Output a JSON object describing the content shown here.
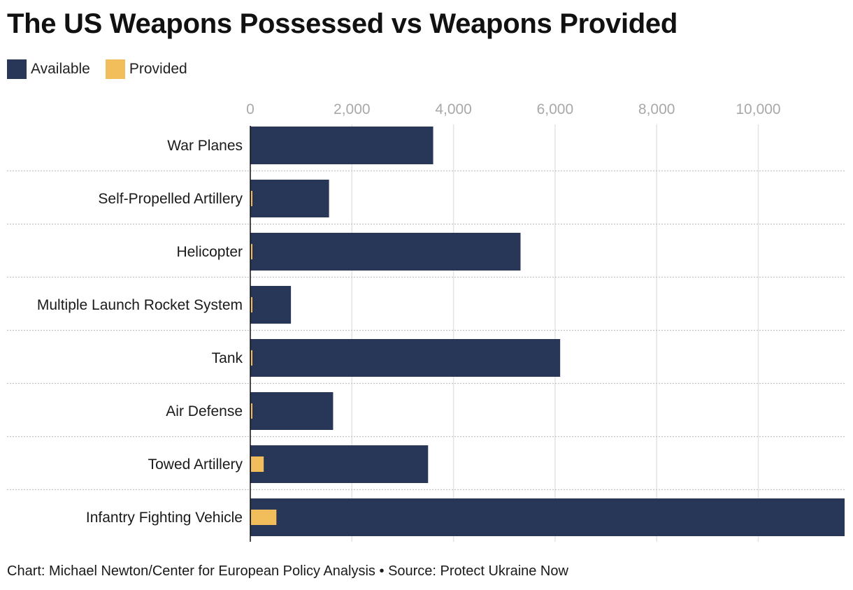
{
  "title": "The US Weapons Possessed vs Weapons Provided",
  "legend": [
    {
      "label": "Available",
      "color": "#283758"
    },
    {
      "label": "Provided",
      "color": "#f2be5c"
    }
  ],
  "footer": {
    "credit": "Chart: Michael Newton/Center for European Policy Analysis",
    "separator": "•",
    "source": "Source: Protect Ukraine Now"
  },
  "chart_data": {
    "type": "bar",
    "orientation": "horizontal",
    "title": "The US Weapons Possessed vs Weapons Provided",
    "xlabel": "",
    "ylabel": "",
    "xlim": [
      0,
      11700
    ],
    "ticks": [
      0,
      2000,
      4000,
      6000,
      8000,
      10000
    ],
    "tick_labels": [
      "0",
      "2,000",
      "4,000",
      "6,000",
      "8,000",
      "10,000"
    ],
    "grid": true,
    "legend_position": "top-left",
    "categories": [
      "War Planes",
      "Self-Propelled Artillery",
      "Helicopter",
      "Multiple Launch Rocket System",
      "Tank",
      "Air Defense",
      "Towed Artillery",
      "Infantry Fighting Vehicle"
    ],
    "series": [
      {
        "name": "Available",
        "color": "#283758",
        "values": [
          3600,
          1550,
          5320,
          800,
          6100,
          1630,
          3500,
          11700
        ]
      },
      {
        "name": "Provided",
        "color": "#f2be5c",
        "values": [
          0,
          20,
          20,
          20,
          20,
          20,
          250,
          500
        ]
      }
    ]
  }
}
